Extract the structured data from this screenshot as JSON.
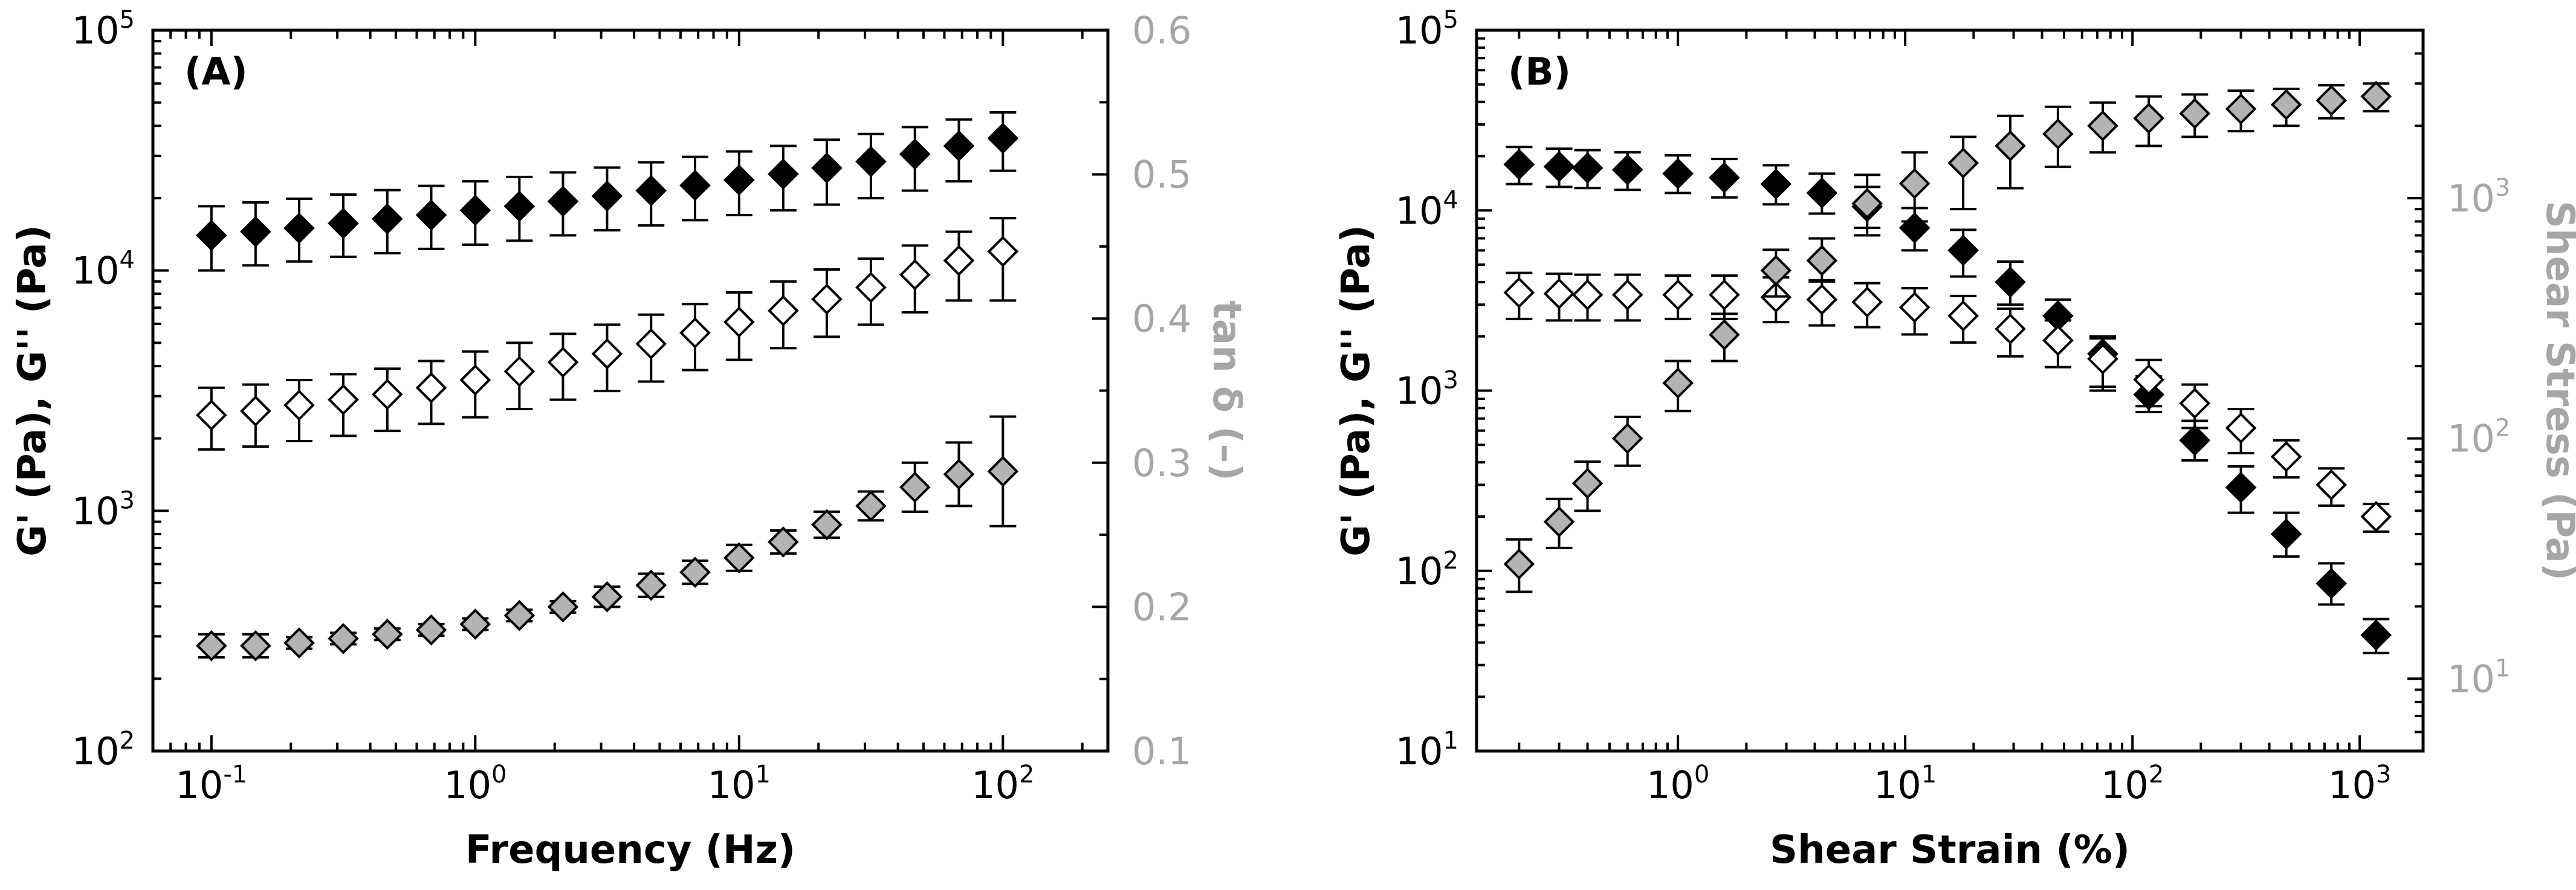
{
  "chart_data": [
    {
      "id": "A",
      "type": "scatter",
      "panel_label": "(A)",
      "xlabel": "Frequency (Hz)",
      "ylabel": "G' (Pa), G'' (Pa)",
      "y2label": "tan δ (–)",
      "xscale": "log",
      "yscale": "log",
      "xlim": [
        0.06,
        250
      ],
      "ylim": [
        100,
        100000
      ],
      "y2lim": [
        0.1,
        0.6
      ],
      "x_ticks": [
        {
          "value": 0.1,
          "base": "10",
          "exp": "-1"
        },
        {
          "value": 1,
          "base": "10",
          "exp": "0"
        },
        {
          "value": 10,
          "base": "10",
          "exp": "1"
        },
        {
          "value": 100,
          "base": "10",
          "exp": "2"
        }
      ],
      "y_ticks": [
        {
          "value": 100,
          "base": "10",
          "exp": "2"
        },
        {
          "value": 1000,
          "base": "10",
          "exp": "3"
        },
        {
          "value": 10000,
          "base": "10",
          "exp": "4"
        },
        {
          "value": 100000,
          "base": "10",
          "exp": "5"
        }
      ],
      "y2_ticks": [
        {
          "value": 0.1,
          "label": "0.1"
        },
        {
          "value": 0.2,
          "label": "0.2"
        },
        {
          "value": 0.3,
          "label": "0.3"
        },
        {
          "value": 0.4,
          "label": "0.4"
        },
        {
          "value": 0.5,
          "label": "0.5"
        },
        {
          "value": 0.6,
          "label": "0.6"
        }
      ],
      "x": [
        0.1,
        0.147,
        0.215,
        0.316,
        0.464,
        0.681,
        1.0,
        1.47,
        2.15,
        3.16,
        4.64,
        6.81,
        10,
        14.7,
        21.5,
        31.6,
        46.4,
        68.1,
        100
      ],
      "series": [
        {
          "name": "G'",
          "marker": "black",
          "axis": "left",
          "values": [
            14000,
            14500,
            15000,
            15700,
            16400,
            17000,
            17800,
            18500,
            19400,
            20400,
            21500,
            22600,
            23800,
            25200,
            26700,
            28400,
            30500,
            33000,
            35500
          ],
          "err_low": [
            10000,
            10500,
            10900,
            11400,
            11800,
            12300,
            12800,
            13300,
            14000,
            14700,
            15400,
            16200,
            17000,
            17800,
            18800,
            20000,
            21500,
            23500,
            26000
          ],
          "err_high": [
            18500,
            19200,
            19900,
            20700,
            21600,
            22500,
            23500,
            24500,
            25600,
            26800,
            28200,
            29700,
            31300,
            33000,
            35000,
            37000,
            39500,
            42500,
            45500
          ]
        },
        {
          "name": "G''",
          "marker": "white",
          "axis": "left",
          "values": [
            2500,
            2600,
            2750,
            2900,
            3050,
            3250,
            3500,
            3800,
            4150,
            4500,
            4950,
            5500,
            6100,
            6800,
            7600,
            8500,
            9600,
            11000,
            12000
          ],
          "err_low": [
            1800,
            1850,
            1950,
            2050,
            2150,
            2300,
            2450,
            2650,
            2900,
            3150,
            3450,
            3850,
            4250,
            4750,
            5300,
            5950,
            6700,
            7500,
            7500
          ],
          "err_high": [
            3250,
            3350,
            3500,
            3700,
            3900,
            4200,
            4600,
            5000,
            5450,
            5950,
            6550,
            7250,
            8100,
            9000,
            10100,
            11200,
            12700,
            14500,
            16500
          ]
        },
        {
          "name": "tan δ",
          "marker": "gray",
          "axis": "right",
          "values": [
            0.173,
            0.173,
            0.175,
            0.178,
            0.181,
            0.184,
            0.188,
            0.194,
            0.2,
            0.207,
            0.215,
            0.224,
            0.234,
            0.245,
            0.257,
            0.27,
            0.283,
            0.292,
            0.294
          ],
          "err_low": [
            0.165,
            0.165,
            0.171,
            0.174,
            0.177,
            0.18,
            0.184,
            0.19,
            0.196,
            0.2,
            0.207,
            0.216,
            0.225,
            0.237,
            0.248,
            0.26,
            0.266,
            0.27,
            0.256
          ],
          "err_high": [
            0.181,
            0.181,
            0.179,
            0.182,
            0.185,
            0.188,
            0.192,
            0.198,
            0.204,
            0.214,
            0.223,
            0.232,
            0.243,
            0.253,
            0.266,
            0.28,
            0.3,
            0.314,
            0.332
          ]
        }
      ]
    },
    {
      "id": "B",
      "type": "scatter",
      "panel_label": "(B)",
      "xlabel": "Shear Strain (%)",
      "ylabel": "G' (Pa), G'' (Pa)",
      "y2label": "Shear Stress (Pa)",
      "xscale": "log",
      "yscale": "log",
      "xlim": [
        0.13,
        1900
      ],
      "ylim": [
        10,
        100000
      ],
      "y2lim": [
        5,
        5000
      ],
      "x_ticks": [
        {
          "value": 1,
          "base": "10",
          "exp": "0"
        },
        {
          "value": 10,
          "base": "10",
          "exp": "1"
        },
        {
          "value": 100,
          "base": "10",
          "exp": "2"
        },
        {
          "value": 1000,
          "base": "10",
          "exp": "3"
        }
      ],
      "y_ticks": [
        {
          "value": 10,
          "base": "10",
          "exp": "1"
        },
        {
          "value": 100,
          "base": "10",
          "exp": "2"
        },
        {
          "value": 1000,
          "base": "10",
          "exp": "3"
        },
        {
          "value": 10000,
          "base": "10",
          "exp": "4"
        },
        {
          "value": 100000,
          "base": "10",
          "exp": "5"
        }
      ],
      "y2_ticks": [
        {
          "value": 10,
          "base": "10",
          "exp": "1"
        },
        {
          "value": 100,
          "base": "10",
          "exp": "2"
        },
        {
          "value": 1000,
          "base": "10",
          "exp": "3"
        }
      ],
      "x": [
        0.2,
        0.3,
        0.4,
        0.6,
        1.0,
        1.6,
        2.7,
        4.3,
        6.8,
        11,
        18,
        29,
        47,
        74,
        118,
        188,
        300,
        475,
        750,
        1180
      ],
      "series": [
        {
          "name": "G'",
          "marker": "black",
          "axis": "left",
          "values": [
            18000,
            17500,
            17200,
            16800,
            16000,
            15200,
            14000,
            12500,
            10500,
            8000,
            6000,
            4000,
            2600,
            1600,
            950,
            530,
            290,
            160,
            85,
            44
          ],
          "err_low": [
            14000,
            13500,
            13300,
            13000,
            12500,
            11800,
            10800,
            9600,
            8000,
            6000,
            4300,
            3000,
            1900,
            1000,
            760,
            410,
            210,
            120,
            65,
            35
          ],
          "err_high": [
            22500,
            22000,
            21600,
            21000,
            20200,
            19300,
            17800,
            16000,
            13500,
            10300,
            7800,
            5200,
            3200,
            2000,
            1200,
            680,
            380,
            210,
            110,
            54
          ]
        },
        {
          "name": "G''",
          "marker": "white",
          "axis": "left",
          "values": [
            3500,
            3450,
            3400,
            3400,
            3400,
            3400,
            3300,
            3200,
            3100,
            2900,
            2600,
            2200,
            1900,
            1500,
            1150,
            850,
            620,
            430,
            300,
            200
          ],
          "err_low": [
            2500,
            2450,
            2450,
            2450,
            2500,
            2500,
            2400,
            2300,
            2250,
            2050,
            1850,
            1550,
            1350,
            1050,
            820,
            620,
            450,
            330,
            230,
            165
          ],
          "err_high": [
            4500,
            4450,
            4400,
            4400,
            4350,
            4350,
            4250,
            4100,
            3950,
            3700,
            3350,
            2850,
            2450,
            1950,
            1480,
            1080,
            790,
            530,
            370,
            235
          ]
        },
        {
          "name": "Shear Stress",
          "marker": "gray",
          "axis": "right",
          "values": [
            30,
            45,
            65,
            100,
            170,
            270,
            500,
            550,
            950,
            1150,
            1400,
            1650,
            1850,
            2000,
            2150,
            2250,
            2350,
            2450,
            2550,
            2650
          ],
          "err_low": [
            23,
            35,
            50,
            77,
            130,
            210,
            390,
            450,
            700,
            800,
            900,
            1100,
            1350,
            1550,
            1650,
            1800,
            1900,
            2000,
            2150,
            2300
          ],
          "err_high": [
            38,
            56,
            80,
            123,
            210,
            330,
            610,
            680,
            1250,
            1550,
            1800,
            2200,
            2400,
            2500,
            2650,
            2700,
            2800,
            2850,
            2950,
            3000
          ]
        }
      ]
    }
  ]
}
